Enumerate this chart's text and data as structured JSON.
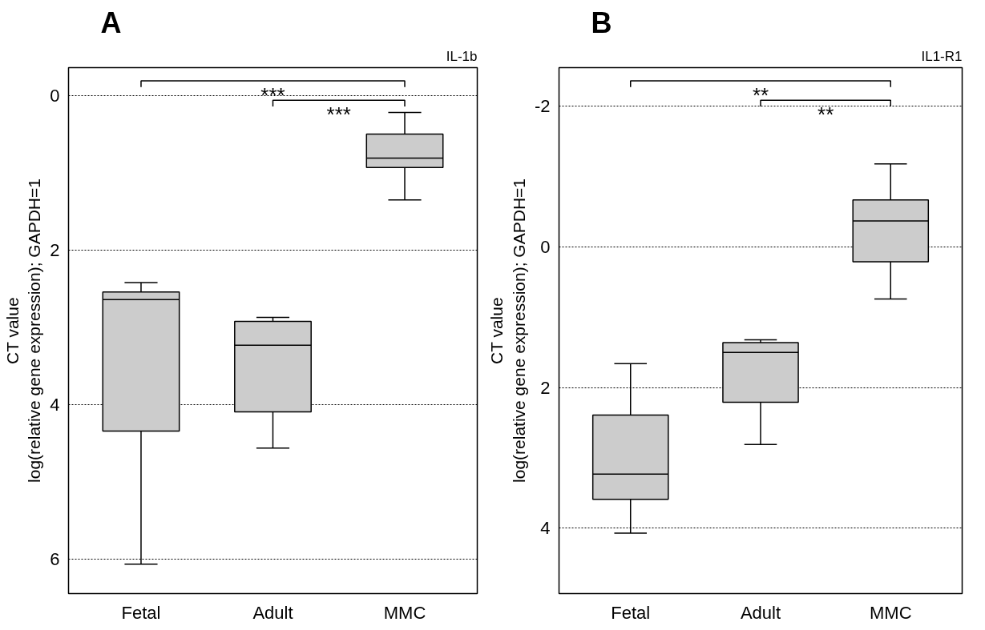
{
  "chart_data": [
    {
      "type": "box",
      "title": "A",
      "subtitle": "IL-1b",
      "ylabel": "CT value\nlog(relative gene expression); GAPDH=1",
      "categories": [
        "Fetal",
        "Adult",
        "MMC"
      ],
      "color": "#cccccc",
      "boxes": [
        {
          "low": 2.42,
          "q1": 2.54,
          "median": 2.64,
          "q3": 4.34,
          "high": 6.06
        },
        {
          "low": 2.87,
          "q1": 2.92,
          "median": 3.23,
          "q3": 4.09,
          "high": 4.56
        },
        {
          "low": 0.22,
          "q1": 0.5,
          "median": 0.81,
          "q3": 0.93,
          "high": 1.35
        }
      ],
      "ylim": [
        6.44,
        -0.36
      ],
      "yticks": [
        0,
        2,
        4,
        6
      ],
      "grid": "y",
      "annotations": [
        "***",
        "***"
      ]
    },
    {
      "type": "box",
      "title": "B",
      "subtitle": "IL1-R1",
      "ylabel": "CT value\nlog(relative gene expression); GAPDH=1",
      "categories": [
        "Fetal",
        "Adult",
        "MMC"
      ],
      "color": "#cccccc",
      "boxes": [
        {
          "low": 1.66,
          "q1": 2.39,
          "median": 3.23,
          "q3": 3.59,
          "high": 4.07
        },
        {
          "low": 1.32,
          "q1": 1.36,
          "median": 1.5,
          "q3": 2.21,
          "high": 2.81
        },
        {
          "low": -1.18,
          "q1": -0.67,
          "median": -0.37,
          "q3": 0.21,
          "high": 0.74
        }
      ],
      "ylim": [
        4.93,
        -2.55
      ],
      "yticks": [
        -2,
        0,
        2,
        4
      ],
      "grid": "y",
      "annotations": [
        "**",
        "**"
      ]
    }
  ]
}
